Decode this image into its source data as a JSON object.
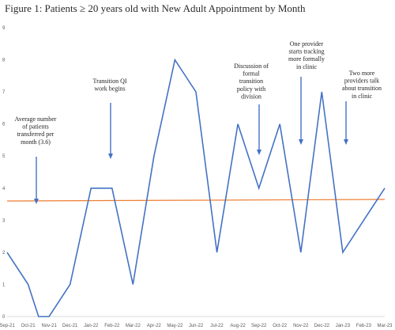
{
  "chart_data": {
    "type": "line",
    "title": "Figure 1: Patients ≥ 20 years old with New Adult Appointment by Month",
    "xlabel": "",
    "ylabel": "",
    "categories": [
      "Sep-21",
      "Oct-21",
      "Nov-21",
      "Dec-21",
      "Jan-22",
      "Feb-22",
      "Mar-22",
      "Apr-22",
      "May-22",
      "Jun-22",
      "Jul-22",
      "Aug-22",
      "Sep-22",
      "Oct-22",
      "Nov-22",
      "Dec-22",
      "Jan-23",
      "Feb-23",
      "Mar-23"
    ],
    "points": [
      {
        "x": 0,
        "y": 2
      },
      {
        "x": 1,
        "y": 1
      },
      {
        "x": 1.5,
        "y": 0
      },
      {
        "x": 2,
        "y": 0
      },
      {
        "x": 3,
        "y": 1
      },
      {
        "x": 4,
        "y": 4
      },
      {
        "x": 5,
        "y": 4
      },
      {
        "x": 6,
        "y": 1
      },
      {
        "x": 7,
        "y": 5
      },
      {
        "x": 8,
        "y": 8
      },
      {
        "x": 9,
        "y": 7
      },
      {
        "x": 10,
        "y": 2
      },
      {
        "x": 11,
        "y": 6
      },
      {
        "x": 12,
        "y": 4
      },
      {
        "x": 13,
        "y": 6
      },
      {
        "x": 14,
        "y": 2
      },
      {
        "x": 15,
        "y": 7
      },
      {
        "x": 16,
        "y": 2
      },
      {
        "x": 17,
        "y": 3
      },
      {
        "x": 18,
        "y": 4
      }
    ],
    "average": 3.6,
    "ylim": [
      0,
      9
    ],
    "yticks": [
      0,
      1,
      2,
      3,
      4,
      5,
      6,
      7,
      8,
      9
    ],
    "grid": false,
    "line_color": "#4472c4",
    "average_color": "#ed7d31",
    "annotations": [
      {
        "lines": [
          "Average number",
          "of patients",
          "transferred per",
          "month (3.6)"
        ]
      },
      {
        "lines": [
          "Transition QI",
          "work begins"
        ]
      },
      {
        "lines": [
          "Discussion of",
          "formal",
          "transition",
          "policy with",
          "division"
        ]
      },
      {
        "lines": [
          "One provider",
          "starts tracking",
          "more formally",
          "in clinic"
        ]
      },
      {
        "lines": [
          "Two more",
          "providers talk",
          "about transition",
          "in clinic"
        ]
      }
    ]
  }
}
